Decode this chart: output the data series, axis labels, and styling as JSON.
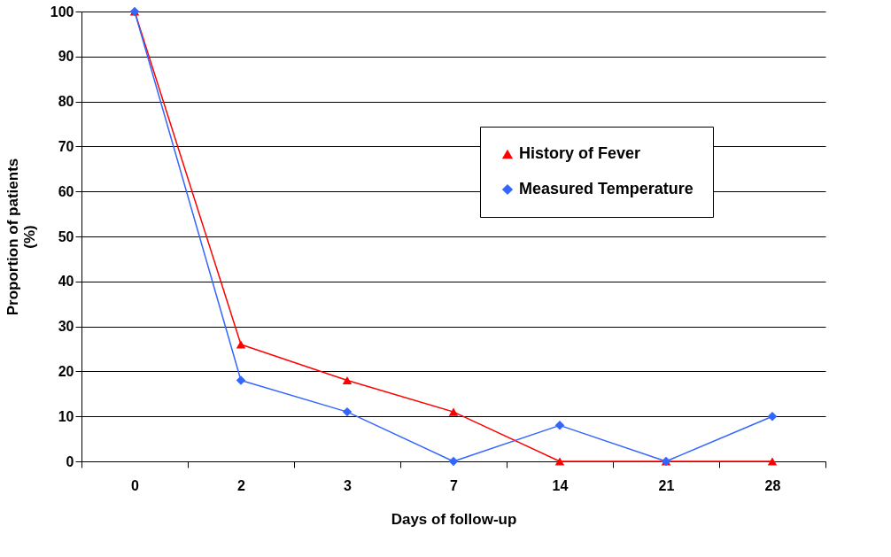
{
  "chart_data": {
    "type": "line",
    "xlabel": "Days of follow-up",
    "ylabel": "Proportion of patients (%)",
    "categories": [
      "0",
      "2",
      "3",
      "7",
      "14",
      "21",
      "28"
    ],
    "series": [
      {
        "name": "History of Fever",
        "color": "#ff0000",
        "marker": "triangle",
        "values": [
          100,
          26,
          18,
          11,
          0,
          0,
          0
        ]
      },
      {
        "name": "Measured Temperature",
        "color": "#3366ff",
        "marker": "diamond",
        "values": [
          100,
          18,
          11,
          0,
          8,
          0,
          10
        ]
      }
    ],
    "ylim": [
      0,
      100
    ],
    "yticks": [
      0,
      10,
      20,
      30,
      40,
      50,
      60,
      70,
      80,
      90,
      100
    ],
    "grid": "y",
    "legend": "right",
    "line_style": "solid"
  }
}
